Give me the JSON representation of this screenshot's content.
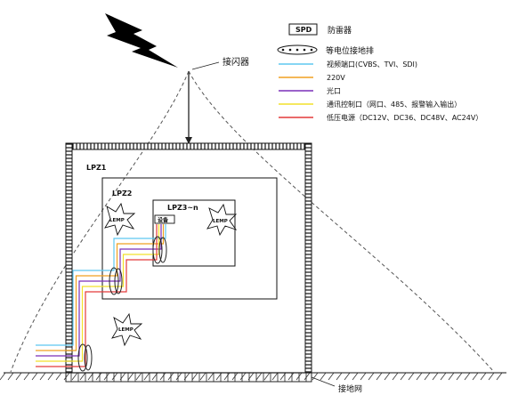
{
  "legend": {
    "spd_box": "SPD",
    "spd_text": "防雷器",
    "bond_text": "等电位接地排",
    "lines": [
      {
        "label": "视频端口(CVBS、TVI、SDI)",
        "color": "#5ec8f0"
      },
      {
        "label": "220V",
        "color": "#f0a020"
      },
      {
        "label": "光口",
        "color": "#7a2fb8"
      },
      {
        "label": "通讯控制口（网口、485、报警输入输出）",
        "color": "#f2e02a"
      },
      {
        "label": "低压电源（DC12V、DC36、DC48V、AC24V）",
        "color": "#e43a3a"
      }
    ]
  },
  "labels": {
    "arrester": "接闪器",
    "ground_grid": "接地网",
    "lpz1": "LPZ1",
    "lpz2": "LPZ2",
    "lpz3": "LPZ3~n",
    "device": "设备",
    "lemp": "LEMP"
  }
}
